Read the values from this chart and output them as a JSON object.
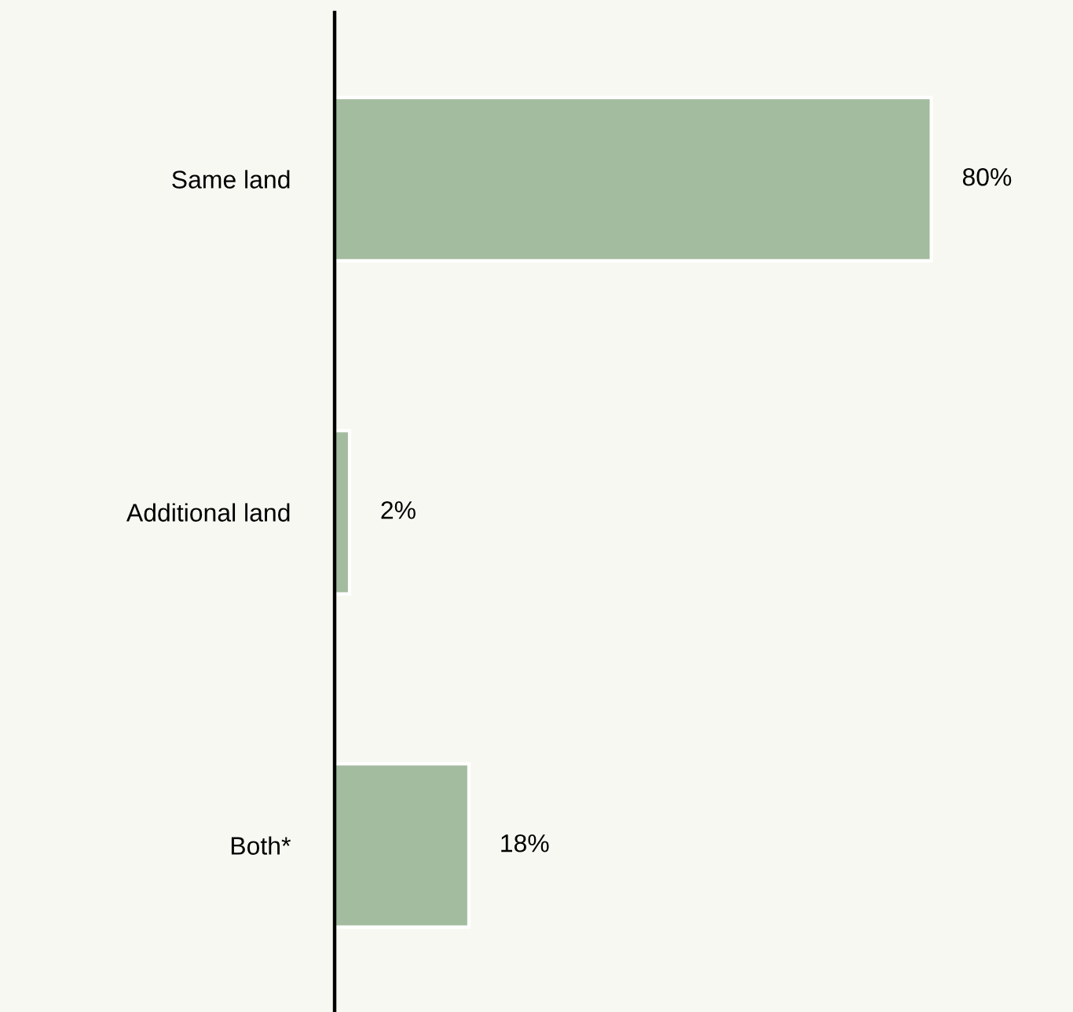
{
  "chart_data": {
    "type": "bar",
    "orientation": "horizontal",
    "categories": [
      "Same land",
      "Additional land",
      "Both*"
    ],
    "values": [
      80,
      2,
      18
    ],
    "value_labels": [
      "80%",
      "2%",
      "18%"
    ],
    "color": "#a3bb9e",
    "xlim": [
      0,
      99
    ],
    "grid": false,
    "legend": false,
    "tick_labels": "y"
  }
}
